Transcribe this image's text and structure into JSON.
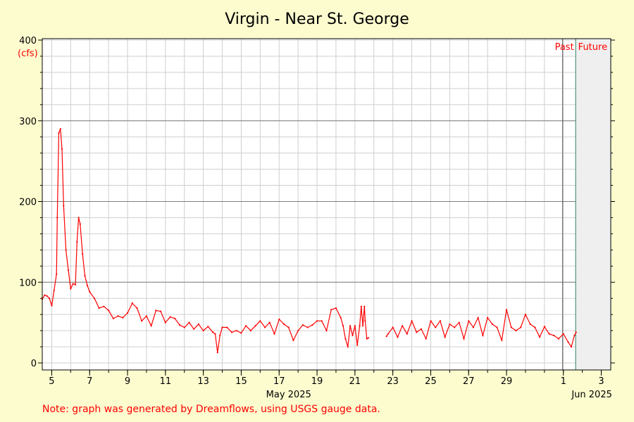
{
  "chart_data": {
    "type": "line",
    "title": "Virgin - Near St. George",
    "ylabel": "(cfs)",
    "ylim": [
      0,
      400
    ],
    "y_ticks": [
      0,
      100,
      200,
      300,
      400
    ],
    "x_range": [
      "2025-05-04T12:00",
      "2025-06-03T12:00"
    ],
    "x_tick_labels": [
      "5",
      "7",
      "9",
      "11",
      "13",
      "15",
      "17",
      "19",
      "21",
      "23",
      "25",
      "27",
      "29",
      "1",
      "3"
    ],
    "x_tick_dates": [
      "2025-05-05",
      "2025-05-07",
      "2025-05-09",
      "2025-05-11",
      "2025-05-13",
      "2025-05-15",
      "2025-05-17",
      "2025-05-19",
      "2025-05-21",
      "2025-05-23",
      "2025-05-25",
      "2025-05-27",
      "2025-05-29",
      "2025-06-01",
      "2025-06-03"
    ],
    "month_labels": [
      {
        "text": "May 2025",
        "date": "2025-05-17"
      },
      {
        "text": "Jun 2025",
        "date": "2025-06-02"
      }
    ],
    "past_label": "Past",
    "future_label": "Future",
    "now": "2025-06-01T16:00",
    "line_color": "#ff0000",
    "series": [
      {
        "segments": [
          [
            [
              "2025-05-04T12:00",
              79
            ],
            [
              "2025-05-04T15:00",
              84
            ],
            [
              "2025-05-04T18:00",
              83
            ],
            [
              "2025-05-04T21:00",
              80
            ],
            [
              "2025-05-05T00:00",
              71
            ],
            [
              "2025-05-05T03:00",
              90
            ],
            [
              "2025-05-05T06:00",
              110
            ],
            [
              "2025-05-05T07:00",
              180
            ],
            [
              "2025-05-05T09:00",
              285
            ],
            [
              "2025-05-05T11:00",
              290
            ],
            [
              "2025-05-05T13:00",
              265
            ],
            [
              "2025-05-05T15:00",
              195
            ],
            [
              "2025-05-05T18:00",
              140
            ],
            [
              "2025-05-05T21:00",
              115
            ],
            [
              "2025-05-06T00:00",
              92
            ],
            [
              "2025-05-06T03:00",
              98
            ],
            [
              "2025-05-06T06:00",
              97
            ],
            [
              "2025-05-06T08:00",
              150
            ],
            [
              "2025-05-06T10:00",
              180
            ],
            [
              "2025-05-06T12:00",
              172
            ],
            [
              "2025-05-06T15:00",
              135
            ],
            [
              "2025-05-06T18:00",
              108
            ],
            [
              "2025-05-06T21:00",
              96
            ],
            [
              "2025-05-07T00:00",
              88
            ],
            [
              "2025-05-07T06:00",
              80
            ],
            [
              "2025-05-07T12:00",
              68
            ],
            [
              "2025-05-07T18:00",
              70
            ],
            [
              "2025-05-08T00:00",
              65
            ],
            [
              "2025-05-08T06:00",
              55
            ],
            [
              "2025-05-08T12:00",
              58
            ],
            [
              "2025-05-08T18:00",
              56
            ],
            [
              "2025-05-09T00:00",
              62
            ],
            [
              "2025-05-09T06:00",
              74
            ],
            [
              "2025-05-09T12:00",
              68
            ],
            [
              "2025-05-09T18:00",
              52
            ],
            [
              "2025-05-10T00:00",
              58
            ],
            [
              "2025-05-10T06:00",
              46
            ],
            [
              "2025-05-10T12:00",
              65
            ],
            [
              "2025-05-10T18:00",
              64
            ],
            [
              "2025-05-11T00:00",
              50
            ],
            [
              "2025-05-11T06:00",
              57
            ],
            [
              "2025-05-11T12:00",
              55
            ],
            [
              "2025-05-11T18:00",
              47
            ],
            [
              "2025-05-12T00:00",
              44
            ],
            [
              "2025-05-12T06:00",
              50
            ],
            [
              "2025-05-12T12:00",
              42
            ],
            [
              "2025-05-12T18:00",
              48
            ],
            [
              "2025-05-13T00:00",
              40
            ],
            [
              "2025-05-13T06:00",
              45
            ],
            [
              "2025-05-13T12:00",
              38
            ],
            [
              "2025-05-13T15:00",
              36
            ],
            [
              "2025-05-13T18:00",
              13
            ],
            [
              "2025-05-13T21:00",
              34
            ],
            [
              "2025-05-14T00:00",
              44
            ],
            [
              "2025-05-14T06:00",
              44
            ],
            [
              "2025-05-14T12:00",
              38
            ],
            [
              "2025-05-14T18:00",
              40
            ],
            [
              "2025-05-15T00:00",
              37
            ],
            [
              "2025-05-15T06:00",
              46
            ],
            [
              "2025-05-15T12:00",
              40
            ],
            [
              "2025-05-15T18:00",
              46
            ],
            [
              "2025-05-16T00:00",
              52
            ],
            [
              "2025-05-16T06:00",
              44
            ],
            [
              "2025-05-16T12:00",
              50
            ],
            [
              "2025-05-16T18:00",
              36
            ],
            [
              "2025-05-17T00:00",
              54
            ],
            [
              "2025-05-17T06:00",
              48
            ],
            [
              "2025-05-17T12:00",
              44
            ],
            [
              "2025-05-17T18:00",
              28
            ],
            [
              "2025-05-18T00:00",
              40
            ],
            [
              "2025-05-18T06:00",
              47
            ],
            [
              "2025-05-18T12:00",
              44
            ],
            [
              "2025-05-18T18:00",
              47
            ],
            [
              "2025-05-19T00:00",
              52
            ],
            [
              "2025-05-19T06:00",
              52
            ],
            [
              "2025-05-19T12:00",
              40
            ],
            [
              "2025-05-19T18:00",
              66
            ],
            [
              "2025-05-20T00:00",
              68
            ],
            [
              "2025-05-20T06:00",
              56
            ],
            [
              "2025-05-20T09:00",
              46
            ],
            [
              "2025-05-20T12:00",
              30
            ],
            [
              "2025-05-20T15:00",
              20
            ],
            [
              "2025-05-20T18:00",
              46
            ],
            [
              "2025-05-20T21:00",
              34
            ],
            [
              "2025-05-21T00:00",
              46
            ],
            [
              "2025-05-21T03:00",
              22
            ],
            [
              "2025-05-21T06:00",
              46
            ],
            [
              "2025-05-21T08:00",
              70
            ],
            [
              "2025-05-21T10:00",
              46
            ],
            [
              "2025-05-21T12:00",
              70
            ],
            [
              "2025-05-21T13:00",
              52
            ],
            [
              "2025-05-21T15:00",
              30
            ],
            [
              "2025-05-21T17:00",
              31
            ]
          ],
          [
            [
              "2025-05-22T16:00",
              33
            ],
            [
              "2025-05-22T18:00",
              36
            ],
            [
              "2025-05-23T00:00",
              44
            ],
            [
              "2025-05-23T06:00",
              32
            ],
            [
              "2025-05-23T12:00",
              46
            ],
            [
              "2025-05-23T18:00",
              36
            ],
            [
              "2025-05-24T00:00",
              52
            ],
            [
              "2025-05-24T06:00",
              38
            ],
            [
              "2025-05-24T12:00",
              42
            ],
            [
              "2025-05-24T18:00",
              30
            ],
            [
              "2025-05-25T00:00",
              52
            ],
            [
              "2025-05-25T06:00",
              44
            ],
            [
              "2025-05-25T12:00",
              52
            ],
            [
              "2025-05-25T18:00",
              32
            ],
            [
              "2025-05-26T00:00",
              48
            ],
            [
              "2025-05-26T06:00",
              44
            ],
            [
              "2025-05-26T12:00",
              50
            ],
            [
              "2025-05-26T18:00",
              30
            ],
            [
              "2025-05-27T00:00",
              52
            ],
            [
              "2025-05-27T06:00",
              44
            ],
            [
              "2025-05-27T12:00",
              56
            ],
            [
              "2025-05-27T18:00",
              34
            ],
            [
              "2025-05-28T00:00",
              56
            ],
            [
              "2025-05-28T06:00",
              48
            ],
            [
              "2025-05-28T12:00",
              44
            ],
            [
              "2025-05-28T18:00",
              28
            ],
            [
              "2025-05-29T00:00",
              66
            ],
            [
              "2025-05-29T06:00",
              44
            ],
            [
              "2025-05-29T12:00",
              40
            ],
            [
              "2025-05-29T18:00",
              44
            ],
            [
              "2025-05-30T00:00",
              60
            ],
            [
              "2025-05-30T06:00",
              48
            ],
            [
              "2025-05-30T12:00",
              44
            ],
            [
              "2025-05-30T18:00",
              32
            ],
            [
              "2025-05-31T00:00",
              45
            ],
            [
              "2025-05-31T06:00",
              36
            ],
            [
              "2025-05-31T12:00",
              34
            ],
            [
              "2025-05-31T18:00",
              30
            ],
            [
              "2025-06-01T00:00",
              36
            ],
            [
              "2025-06-01T06:00",
              26
            ],
            [
              "2025-06-01T10:00",
              20
            ],
            [
              "2025-06-01T14:00",
              34
            ],
            [
              "2025-06-01T16:00",
              38
            ]
          ]
        ]
      }
    ]
  },
  "note": "Note: graph was generated by Dreamflows, using USGS gauge data."
}
